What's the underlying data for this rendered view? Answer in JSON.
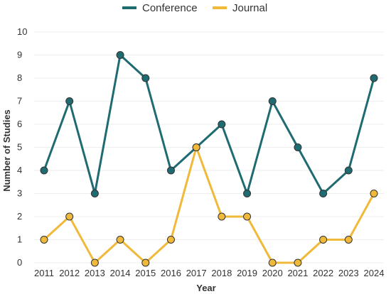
{
  "chart_data": {
    "type": "line",
    "title": "",
    "xlabel": "Year",
    "ylabel": "Number of Studies",
    "ylim": [
      0,
      10
    ],
    "yticks": [
      "0",
      "1",
      "2",
      "3",
      "4",
      "5",
      "6",
      "7",
      "8",
      "9",
      "10"
    ],
    "grid": "horizontal",
    "legend": "top-center",
    "categories": [
      "2011",
      "2012",
      "2013",
      "2014",
      "2015",
      "2016",
      "2017",
      "2018",
      "2019",
      "2020",
      "2021",
      "2022",
      "2023",
      "2024"
    ],
    "series": [
      {
        "name": "Conference",
        "color": "#1f6b72",
        "values": [
          4,
          7,
          3,
          9,
          8,
          4,
          5,
          6,
          3,
          7,
          5,
          3,
          4,
          8
        ]
      },
      {
        "name": "Journal",
        "color": "#f0b93a",
        "values": [
          1,
          2,
          0,
          1,
          0,
          1,
          5,
          2,
          2,
          0,
          0,
          1,
          1,
          3
        ]
      }
    ]
  }
}
